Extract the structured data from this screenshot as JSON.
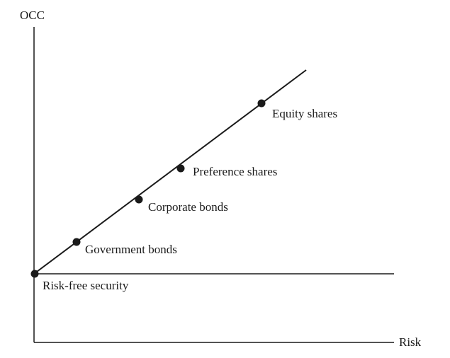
{
  "diagram": {
    "y_axis_label": "OCC",
    "x_axis_label": "Risk",
    "points": [
      {
        "label": "Risk-free security"
      },
      {
        "label": "Government bonds"
      },
      {
        "label": "Corporate bonds"
      },
      {
        "label": "Preference shares"
      },
      {
        "label": "Equity shares"
      }
    ]
  },
  "colors": {
    "ink": "#1a1a1a",
    "background": "#ffffff"
  }
}
